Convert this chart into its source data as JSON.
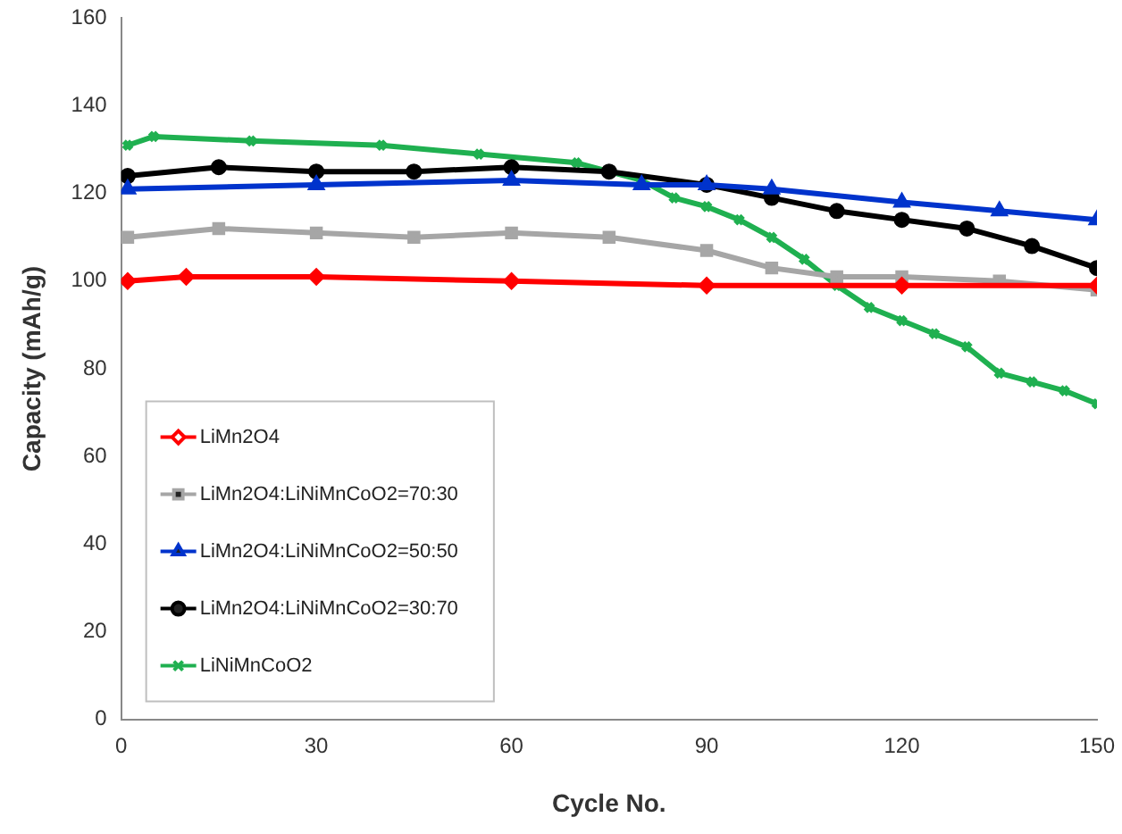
{
  "chart_data": {
    "type": "line",
    "xlabel": "Cycle No.",
    "ylabel": "Capacity (mAh/g)",
    "xlim": [
      0,
      150
    ],
    "xticks": [
      0,
      30,
      60,
      90,
      120,
      150
    ],
    "ylim": [
      0,
      160
    ],
    "yticks": [
      0,
      20,
      40,
      60,
      80,
      100,
      120,
      140,
      160
    ],
    "grid": false,
    "legend": "bottom left",
    "line_style": "solid",
    "series": [
      {
        "name": "LiMn2O4",
        "color": "#ff0000",
        "marker": "diamond",
        "x": [
          1,
          10,
          30,
          60,
          90,
          120,
          150
        ],
        "values": [
          100,
          101,
          101,
          100,
          99,
          99,
          99
        ]
      },
      {
        "name": "LiMn2O4:LiNiMnCoO2=70:30",
        "color": "#a6a6a6",
        "marker": "square",
        "x": [
          1,
          15,
          30,
          45,
          60,
          75,
          90,
          100,
          110,
          120,
          135,
          150
        ],
        "values": [
          110,
          112,
          111,
          110,
          111,
          110,
          107,
          103,
          101,
          101,
          100,
          98
        ]
      },
      {
        "name": "LiMn2O4:LiNiMnCoO2=50:50",
        "color": "#0033cc",
        "marker": "triangle",
        "x": [
          1,
          30,
          60,
          80,
          90,
          100,
          120,
          135,
          150
        ],
        "values": [
          121,
          122,
          123,
          122,
          122,
          121,
          118,
          116,
          114
        ]
      },
      {
        "name": "LiMn2O4:LiNiMnCoO2=30:70",
        "color": "#000000",
        "marker": "circle",
        "x": [
          1,
          15,
          30,
          45,
          60,
          75,
          90,
          100,
          110,
          120,
          130,
          140,
          150
        ],
        "values": [
          124,
          126,
          125,
          125,
          126,
          125,
          122,
          119,
          116,
          114,
          112,
          108,
          103
        ]
      },
      {
        "name": "LiNiMnCoO2",
        "color": "#1fb050",
        "marker": "cross",
        "x": [
          1,
          5,
          20,
          40,
          55,
          70,
          80,
          85,
          90,
          95,
          100,
          105,
          110,
          115,
          120,
          125,
          130,
          135,
          140,
          145,
          150
        ],
        "values": [
          131,
          133,
          132,
          131,
          129,
          127,
          123,
          119,
          117,
          114,
          110,
          105,
          99,
          94,
          91,
          88,
          85,
          79,
          77,
          75,
          72
        ]
      }
    ]
  }
}
